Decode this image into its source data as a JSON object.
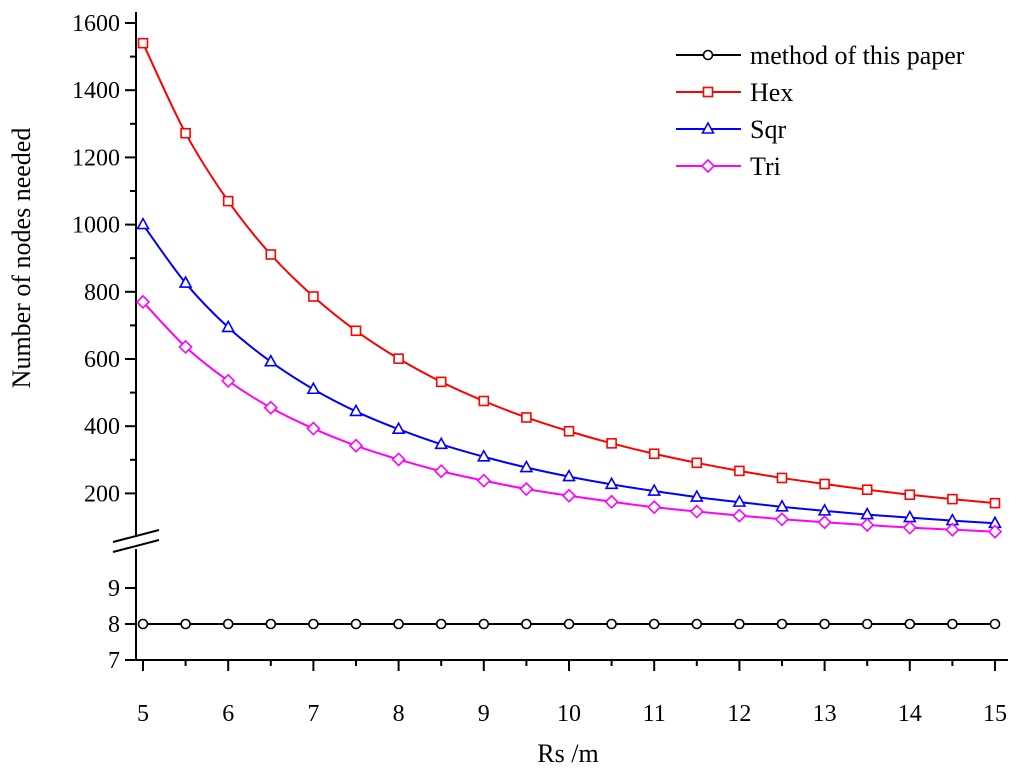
{
  "chart_data": {
    "type": "line",
    "title": "",
    "xlabel": "Rs /m",
    "ylabel": "Number of nodes needed",
    "x": [
      5,
      5.5,
      6,
      6.5,
      7,
      7.5,
      8,
      8.5,
      9,
      9.5,
      10,
      10.5,
      11,
      11.5,
      12,
      12.5,
      13,
      13.5,
      14,
      14.5,
      15
    ],
    "xlim": [
      5,
      15
    ],
    "xticks": [
      5,
      6,
      7,
      8,
      9,
      10,
      11,
      12,
      13,
      14,
      15
    ],
    "y_axis_broken": true,
    "ylim_lower": [
      7,
      10
    ],
    "yticks_lower": [
      7,
      8,
      9
    ],
    "ylim_upper": [
      100,
      1600
    ],
    "yticks_upper": [
      200,
      400,
      600,
      800,
      1000,
      1200,
      1400,
      1600
    ],
    "legend_position": "top-right",
    "series": [
      {
        "name": "method of this paper",
        "color": "#000000",
        "marker": "circle",
        "values": [
          8,
          8,
          8,
          8,
          8,
          8,
          8,
          8,
          8,
          8,
          8,
          8,
          8,
          8,
          8,
          8,
          8,
          8,
          8,
          8,
          8
        ]
      },
      {
        "name": "Hex",
        "color": "#ff0000",
        "marker": "square",
        "values": [
          1540,
          1272,
          1070,
          911,
          786,
          684,
          601,
          532,
          475,
          426,
          385,
          349,
          318,
          291,
          267,
          246,
          228,
          211,
          196,
          183,
          171
        ]
      },
      {
        "name": "Sqr",
        "color": "#0000ff",
        "marker": "triangle",
        "values": [
          1000,
          826,
          694,
          592,
          510,
          444,
          391,
          346,
          309,
          277,
          250,
          227,
          207,
          189,
          174,
          160,
          148,
          137,
          128,
          119,
          111
        ]
      },
      {
        "name": "Tri",
        "color": "#ff00ff",
        "marker": "diamond",
        "values": [
          770,
          636,
          535,
          455,
          393,
          342,
          301,
          266,
          238,
          213,
          193,
          175,
          159,
          146,
          134,
          123,
          114,
          106,
          98,
          92,
          86
        ]
      }
    ]
  }
}
